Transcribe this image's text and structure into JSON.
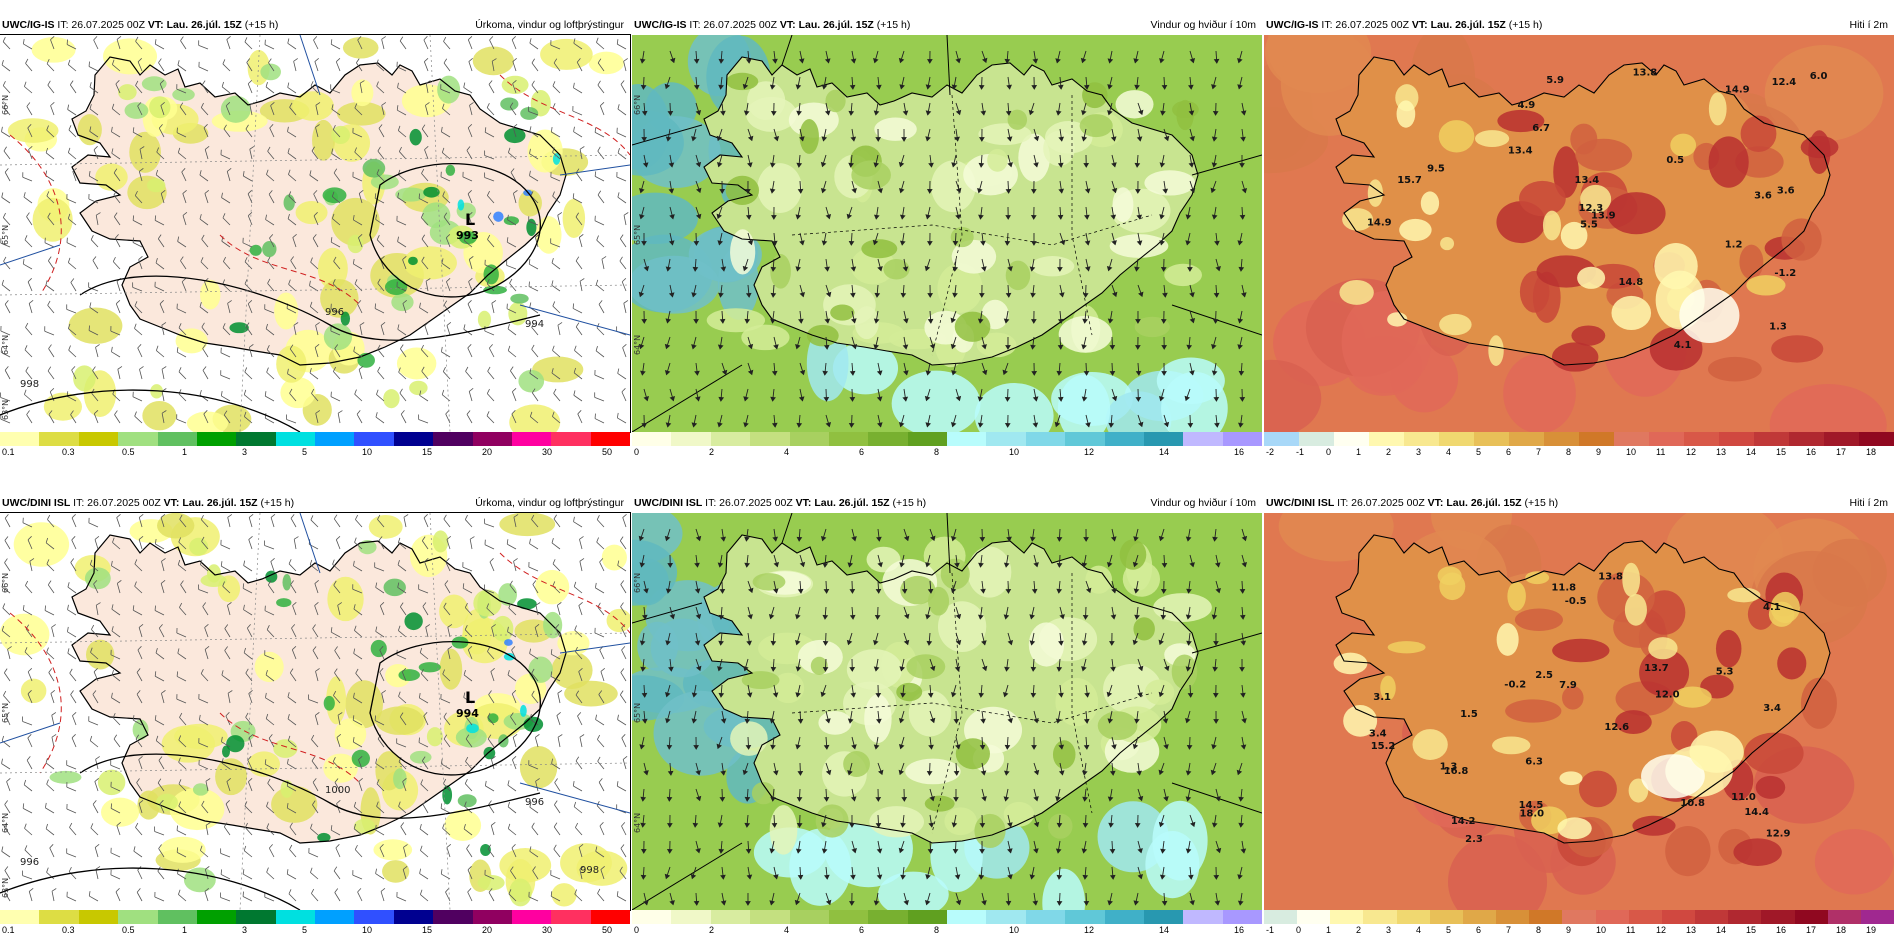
{
  "panels": [
    {
      "id": "r1c1",
      "model": "UWC/IG-IS",
      "it_label": "IT:",
      "it_value": "26.07.2025 00Z",
      "vt_label": "VT:",
      "vt_value": "Lau. 26.júl. 15Z",
      "lead": "(+15 h)",
      "variable": "Úrkoma, vindur og loftþrýstingur",
      "colorbar": {
        "colors": [
          "#ffffb0",
          "#dddd44",
          "#c8c800",
          "#a0e080",
          "#60c060",
          "#00a000",
          "#007830",
          "#00e0e0",
          "#00a0ff",
          "#3050ff",
          "#000090",
          "#500060",
          "#900060",
          "#ff00a0",
          "#ff3060",
          "#ff0000"
        ],
        "ticks": [
          "0.1",
          "0.3",
          "0.5",
          "1",
          "3",
          "5",
          "10",
          "15",
          "20",
          "30",
          "50"
        ]
      },
      "lows": [
        {
          "symbol": "L",
          "value": "993"
        }
      ],
      "isobar_labels": [
        "996",
        "994",
        "998"
      ],
      "lat_labels": [
        "66°N",
        "65°N",
        "64°N",
        "63°N"
      ]
    },
    {
      "id": "r1c2",
      "model": "UWC/IG-IS",
      "it_label": "IT:",
      "it_value": "26.07.2025 00Z",
      "vt_label": "VT:",
      "vt_value": "Lau. 26.júl. 15Z",
      "lead": "(+15 h)",
      "variable": "Vindur og hviður í 10m",
      "colorbar": {
        "colors": [
          "#ffffe8",
          "#f0f8c8",
          "#d8eca0",
          "#c4e080",
          "#a8d060",
          "#90c040",
          "#78b030",
          "#60a020",
          "#b8fcfc",
          "#a0e8f0",
          "#80d8e8",
          "#60c8d8",
          "#40b0c8",
          "#2898b0",
          "#c0b8ff",
          "#a898ff"
        ],
        "ticks": [
          "0",
          "2",
          "4",
          "6",
          "8",
          "10",
          "12",
          "14",
          "16"
        ]
      },
      "lat_labels": [
        "66°N",
        "65°N",
        "64°N"
      ]
    },
    {
      "id": "r1c3",
      "model": "UWC/IG-IS",
      "it_label": "IT:",
      "it_value": "26.07.2025 00Z",
      "vt_label": "VT:",
      "vt_value": "Lau. 26.júl. 15Z",
      "lead": "(+15 h)",
      "variable": "Hiti í 2m",
      "colorbar": {
        "colors": [
          "#a8d8f8",
          "#d8ece0",
          "#fffff0",
          "#fff8b0",
          "#f8e890",
          "#f0d870",
          "#e8c058",
          "#e0a848",
          "#d89038",
          "#d07828",
          "#e07860",
          "#e06858",
          "#d85848",
          "#d04840",
          "#c03838",
          "#b02830",
          "#a01828",
          "#900820"
        ],
        "ticks": [
          "-2",
          "-1",
          "0",
          "1",
          "2",
          "3",
          "4",
          "5",
          "6",
          "7",
          "8",
          "9",
          "10",
          "11",
          "12",
          "13",
          "14",
          "15",
          "16",
          "17",
          "18"
        ]
      },
      "temp_labels": [
        "1.2",
        "3.6",
        "12.4",
        "12.3",
        "3.6",
        "4.1",
        "13.8",
        "13.9",
        "14.9",
        "5.5",
        "6.0",
        "14.8",
        "13.4",
        "0.5",
        "13.4",
        "1.3",
        "-1.2",
        "5.9",
        "15.7",
        "14.9",
        "9.5",
        "6.7",
        "4.9"
      ]
    },
    {
      "id": "r2c1",
      "model": "UWC/DINI ISL",
      "it_label": "IT:",
      "it_value": "26.07.2025 00Z",
      "vt_label": "VT:",
      "vt_value": "Lau. 26.júl. 15Z",
      "lead": "(+15 h)",
      "variable": "Úrkoma, vindur og loftþrýstingur",
      "colorbar": {
        "colors": [
          "#ffffb0",
          "#dddd44",
          "#c8c800",
          "#a0e080",
          "#60c060",
          "#00a000",
          "#007830",
          "#00e0e0",
          "#00a0ff",
          "#3050ff",
          "#000090",
          "#500060",
          "#900060",
          "#ff00a0",
          "#ff3060",
          "#ff0000"
        ],
        "ticks": [
          "0.1",
          "0.3",
          "0.5",
          "1",
          "3",
          "5",
          "10",
          "15",
          "20",
          "30",
          "50"
        ]
      },
      "lows": [
        {
          "symbol": "L",
          "value": "994"
        }
      ],
      "isobar_labels": [
        "1000",
        "996",
        "996",
        "998"
      ],
      "lat_labels": [
        "66°N",
        "65°N",
        "64°N",
        "63°N"
      ]
    },
    {
      "id": "r2c2",
      "model": "UWC/DINI ISL",
      "it_label": "IT:",
      "it_value": "26.07.2025 00Z",
      "vt_label": "VT:",
      "vt_value": "Lau. 26.júl. 15Z",
      "lead": "(+15 h)",
      "variable": "Vindur og hviður í 10m",
      "colorbar": {
        "colors": [
          "#ffffe8",
          "#f0f8c8",
          "#d8eca0",
          "#c4e080",
          "#a8d060",
          "#90c040",
          "#78b030",
          "#60a020",
          "#b8fcfc",
          "#a0e8f0",
          "#80d8e8",
          "#60c8d8",
          "#40b0c8",
          "#2898b0",
          "#c0b8ff",
          "#a898ff"
        ],
        "ticks": [
          "0",
          "2",
          "4",
          "6",
          "8",
          "10",
          "12",
          "14",
          "16"
        ]
      },
      "lat_labels": [
        "66°N",
        "65°N",
        "64°N"
      ]
    },
    {
      "id": "r2c3",
      "model": "UWC/DINI ISL",
      "it_label": "IT:",
      "it_value": "26.07.2025 00Z",
      "vt_label": "VT:",
      "vt_value": "Lau. 26.júl. 15Z",
      "lead": "(+15 h)",
      "variable": "Hiti í 2m",
      "colorbar": {
        "colors": [
          "#d8ece0",
          "#fffff0",
          "#fff8b0",
          "#f8e890",
          "#f0d870",
          "#e8c058",
          "#e0a848",
          "#d89038",
          "#d07828",
          "#e07860",
          "#e06858",
          "#d85848",
          "#d04840",
          "#c03838",
          "#b02830",
          "#a01828",
          "#900820",
          "#b03068",
          "#a02890"
        ],
        "ticks": [
          "-1",
          "0",
          "1",
          "2",
          "3",
          "4",
          "5",
          "6",
          "7",
          "8",
          "9",
          "10",
          "11",
          "12",
          "13",
          "14",
          "15",
          "16",
          "17",
          "18",
          "19"
        ]
      },
      "temp_labels": [
        "3.1",
        "13.8",
        "2.3",
        "4.1",
        "11.0",
        "5.3",
        "2.5",
        "14.2",
        "12.6",
        "3.4",
        "15.2",
        "14.4",
        "10.8",
        "13.7",
        "3.4",
        "1.3",
        "-0.2",
        "11.8",
        "12.0",
        "-0.5",
        "6.3",
        "7.9",
        "14.5",
        "16.8",
        "12.9",
        "18.0",
        "1.5"
      ]
    }
  ]
}
